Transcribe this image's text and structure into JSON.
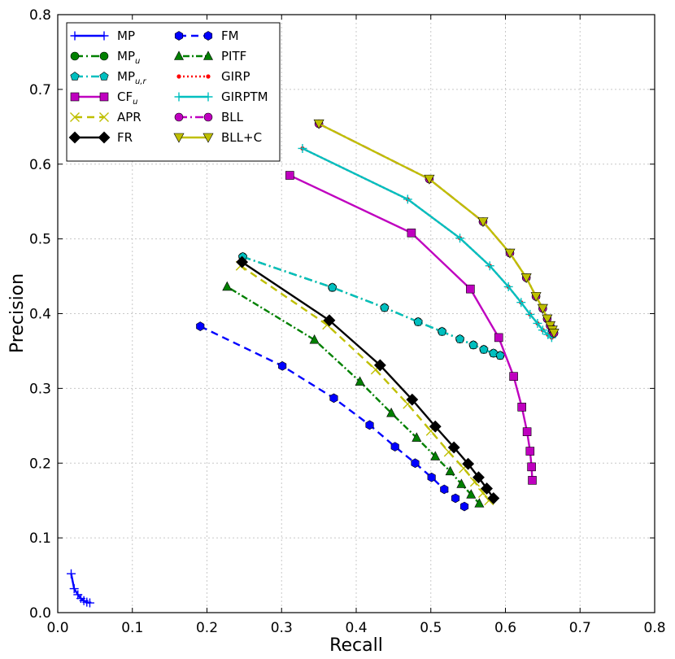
{
  "chart_data": {
    "type": "line",
    "title": "",
    "xlabel": "Recall",
    "ylabel": "Precision",
    "xlim": [
      0.0,
      0.8
    ],
    "ylim": [
      0.0,
      0.8
    ],
    "xticks": [
      "0.0",
      "0.1",
      "0.2",
      "0.3",
      "0.4",
      "0.5",
      "0.6",
      "0.7",
      "0.8"
    ],
    "yticks": [
      "0.0",
      "0.1",
      "0.2",
      "0.3",
      "0.4",
      "0.5",
      "0.6",
      "0.7",
      "0.8"
    ],
    "grid": true,
    "legend_position": "top-left",
    "series": [
      {
        "name": "MP",
        "display": "MP",
        "color": "#0000ff",
        "linestyle": "solid",
        "marker": "plus",
        "x": [
          0.018,
          0.022,
          0.027,
          0.031,
          0.035,
          0.039,
          0.043
        ],
        "y": [
          0.052,
          0.032,
          0.024,
          0.019,
          0.016,
          0.014,
          0.013
        ]
      },
      {
        "name": "MP_u",
        "display": "MP",
        "sub": "u",
        "color": "#008000",
        "linestyle": "dashdot",
        "marker": "circle",
        "x": [
          0.248,
          0.368,
          0.438,
          0.483,
          0.515,
          0.539,
          0.557,
          0.571,
          0.584,
          0.593
        ],
        "y": [
          0.476,
          0.435,
          0.408,
          0.389,
          0.376,
          0.366,
          0.358,
          0.352,
          0.347,
          0.344
        ]
      },
      {
        "name": "MP_u,r",
        "display": "MP",
        "sub": "u,r",
        "color": "#00bfbf",
        "linestyle": "dashdot",
        "marker": "pentagon",
        "x": [
          0.248,
          0.368,
          0.438,
          0.483,
          0.515,
          0.539,
          0.557,
          0.571,
          0.584,
          0.593
        ],
        "y": [
          0.476,
          0.435,
          0.408,
          0.389,
          0.376,
          0.366,
          0.358,
          0.352,
          0.347,
          0.344
        ]
      },
      {
        "name": "CF_u",
        "display": "CF",
        "sub": "u",
        "color": "#bf00bf",
        "linestyle": "solid",
        "marker": "square",
        "x": [
          0.311,
          0.474,
          0.553,
          0.591,
          0.611,
          0.622,
          0.629,
          0.633,
          0.635,
          0.636
        ],
        "y": [
          0.585,
          0.508,
          0.433,
          0.368,
          0.316,
          0.275,
          0.242,
          0.216,
          0.195,
          0.177
        ]
      },
      {
        "name": "APR",
        "display": "APR",
        "color": "#bfbf00",
        "linestyle": "dashed",
        "marker": "x",
        "x": [
          0.245,
          0.361,
          0.426,
          0.469,
          0.5,
          0.524,
          0.544,
          0.559,
          0.57,
          0.578
        ],
        "y": [
          0.464,
          0.385,
          0.325,
          0.279,
          0.243,
          0.215,
          0.193,
          0.175,
          0.16,
          0.15
        ]
      },
      {
        "name": "FR",
        "display": "FR",
        "color": "#000000",
        "linestyle": "solid",
        "marker": "diamond",
        "x": [
          0.247,
          0.364,
          0.432,
          0.475,
          0.506,
          0.531,
          0.55,
          0.564,
          0.575,
          0.584
        ],
        "y": [
          0.469,
          0.391,
          0.331,
          0.285,
          0.249,
          0.221,
          0.199,
          0.181,
          0.166,
          0.153
        ]
      },
      {
        "name": "FM",
        "display": "FM",
        "color": "#0000ff",
        "linestyle": "dashed",
        "marker": "hexagon",
        "x": [
          0.191,
          0.301,
          0.37,
          0.418,
          0.452,
          0.479,
          0.501,
          0.518,
          0.533,
          0.545
        ],
        "y": [
          0.383,
          0.33,
          0.287,
          0.251,
          0.222,
          0.2,
          0.181,
          0.165,
          0.153,
          0.142
        ]
      },
      {
        "name": "PITF",
        "display": "PITF",
        "color": "#008000",
        "linestyle": "dotted-dash",
        "marker": "triangle-up",
        "x": [
          0.227,
          0.344,
          0.405,
          0.447,
          0.481,
          0.506,
          0.526,
          0.541,
          0.554,
          0.565
        ],
        "y": [
          0.436,
          0.365,
          0.309,
          0.267,
          0.234,
          0.209,
          0.189,
          0.172,
          0.158,
          0.146
        ]
      },
      {
        "name": "GIRP",
        "display": "GIRP",
        "color": "#ff0000",
        "linestyle": "dotted",
        "marker": "dot",
        "x": [
          0.328,
          0.469,
          0.539,
          0.579,
          0.604,
          0.621,
          0.633,
          0.643,
          0.65,
          0.657,
          0.662
        ],
        "y": [
          0.621,
          0.553,
          0.501,
          0.464,
          0.436,
          0.415,
          0.399,
          0.387,
          0.378,
          0.372,
          0.368
        ]
      },
      {
        "name": "GIRPTM",
        "display": "GIRPTM",
        "color": "#00bfbf",
        "linestyle": "solid",
        "marker": "plus",
        "x": [
          0.328,
          0.469,
          0.539,
          0.579,
          0.604,
          0.621,
          0.633,
          0.643,
          0.65,
          0.657,
          0.662
        ],
        "y": [
          0.621,
          0.553,
          0.501,
          0.464,
          0.436,
          0.415,
          0.399,
          0.387,
          0.378,
          0.372,
          0.368
        ]
      },
      {
        "name": "BLL",
        "display": "BLL",
        "color": "#bf00bf",
        "linestyle": "dashdot",
        "marker": "circle",
        "x": [
          0.35,
          0.498,
          0.57,
          0.606,
          0.628,
          0.641,
          0.65,
          0.656,
          0.66,
          0.663,
          0.665
        ],
        "y": [
          0.654,
          0.58,
          0.523,
          0.481,
          0.448,
          0.423,
          0.407,
          0.393,
          0.384,
          0.378,
          0.374
        ]
      },
      {
        "name": "BLL+C",
        "display": "BLL+C",
        "color": "#bfbf00",
        "linestyle": "solid",
        "marker": "triangle-down",
        "x": [
          0.35,
          0.498,
          0.57,
          0.606,
          0.628,
          0.641,
          0.65,
          0.656,
          0.66,
          0.663,
          0.665
        ],
        "y": [
          0.654,
          0.58,
          0.523,
          0.481,
          0.448,
          0.423,
          0.407,
          0.393,
          0.384,
          0.378,
          0.374
        ]
      }
    ]
  }
}
